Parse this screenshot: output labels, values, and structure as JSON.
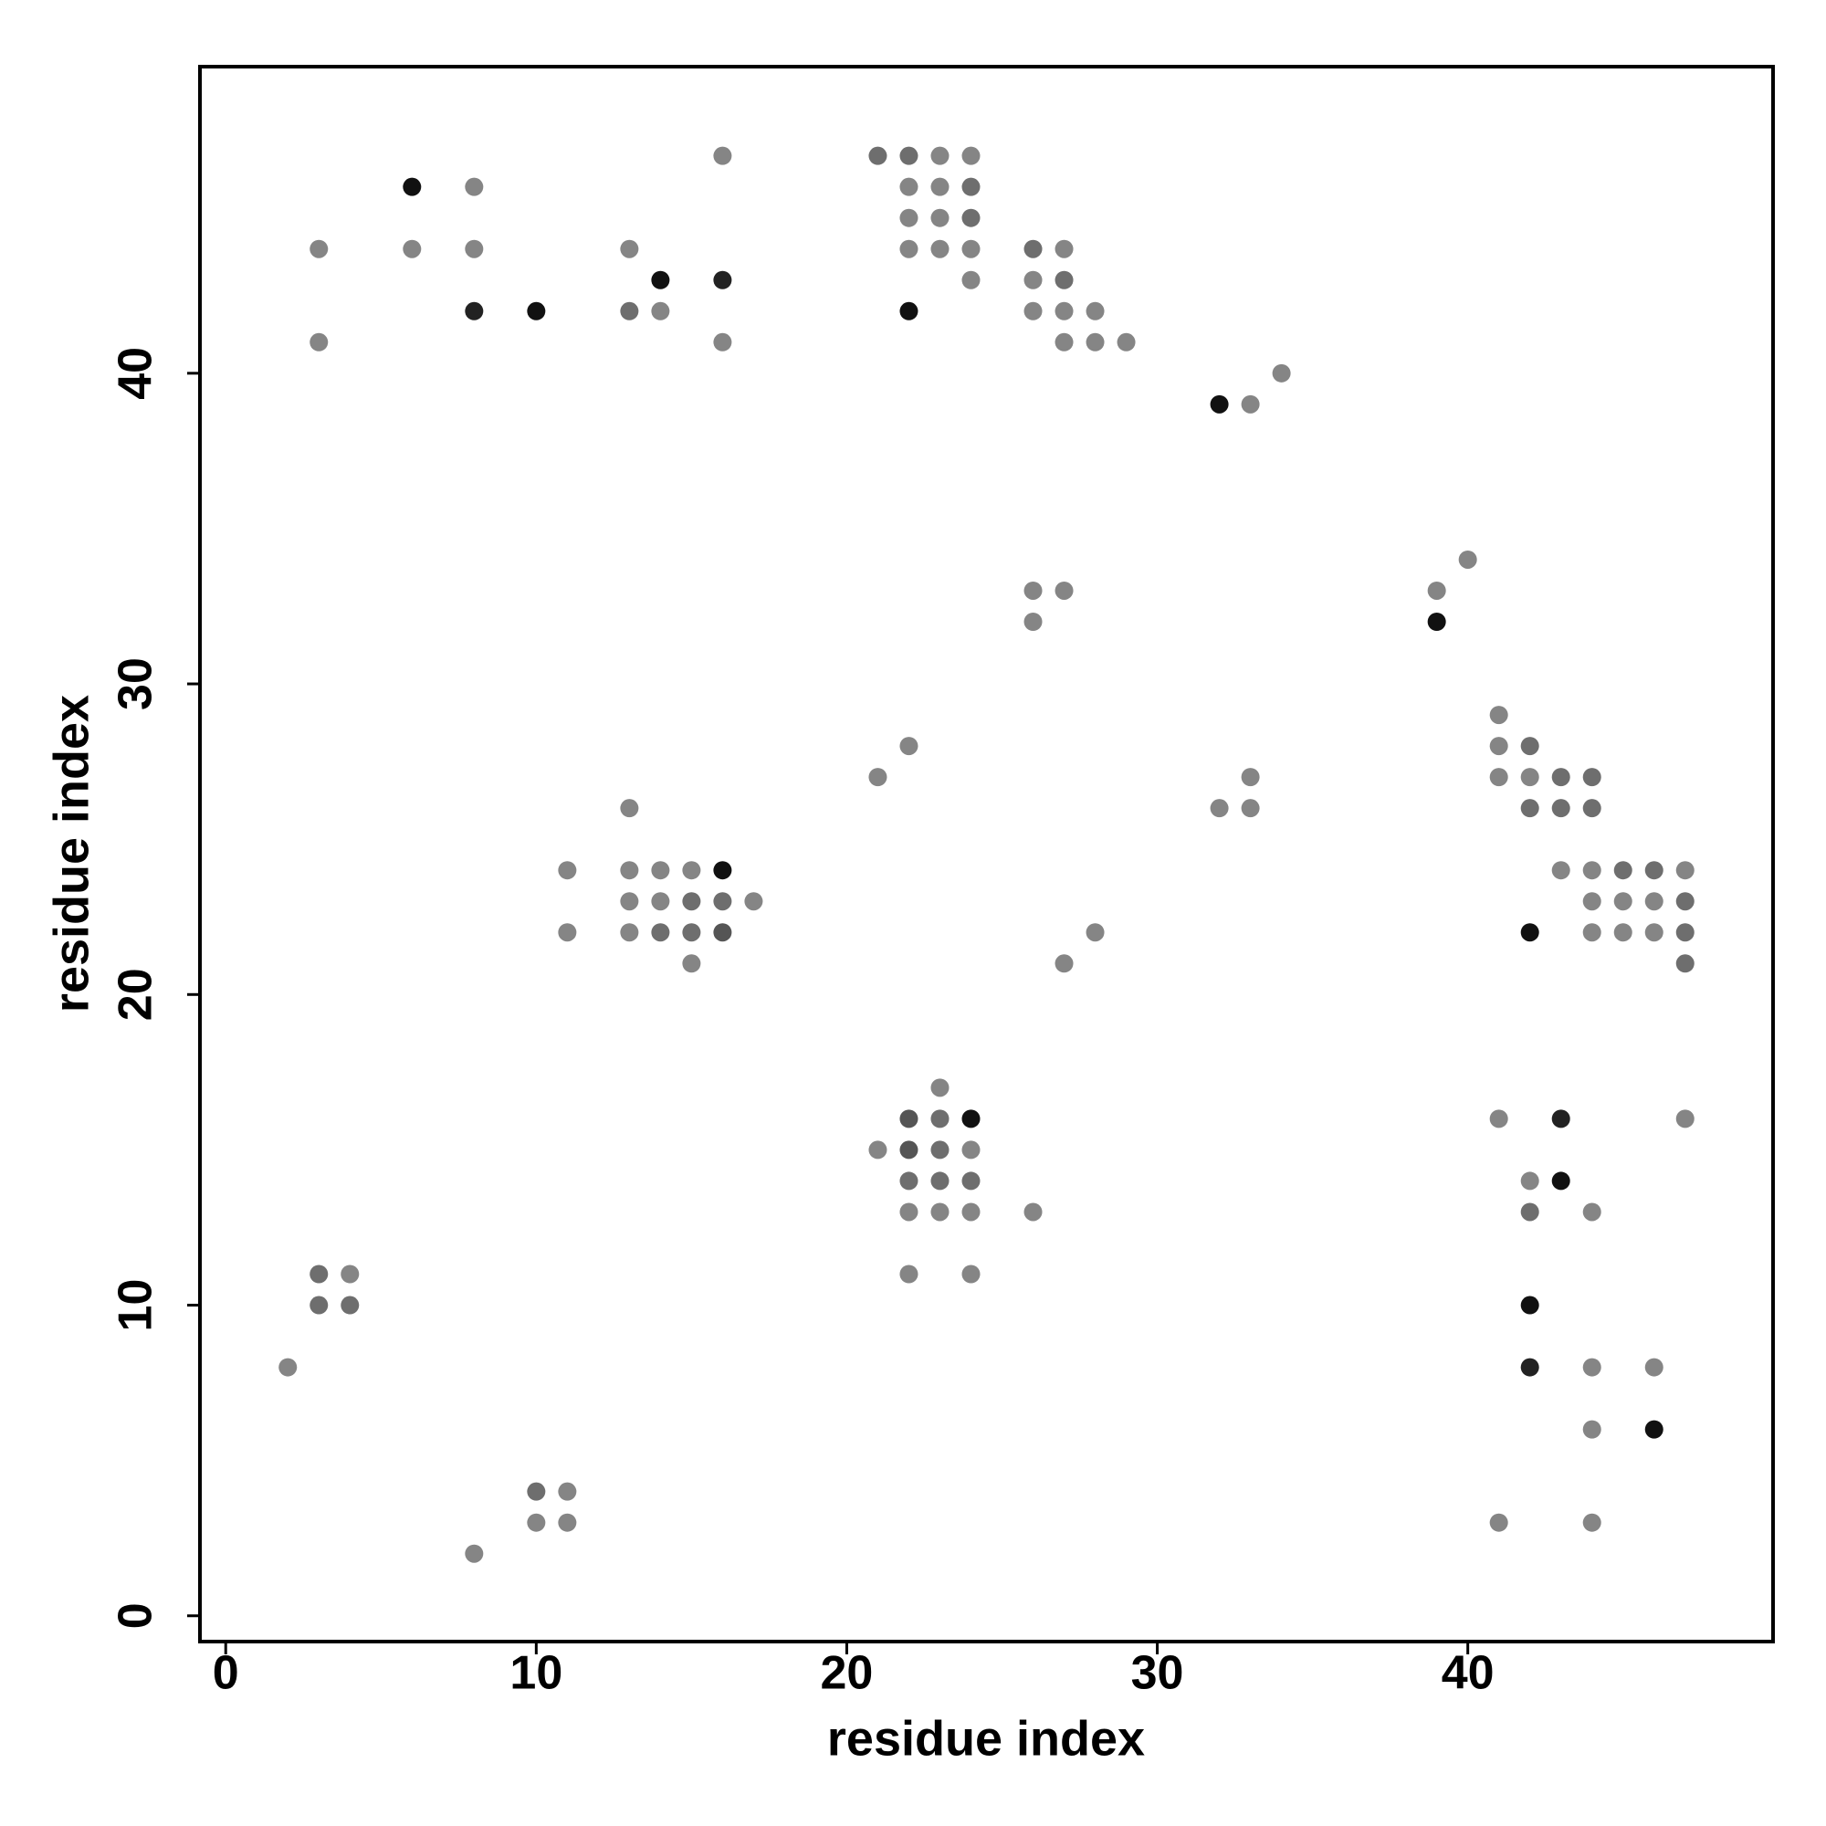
{
  "chart_data": {
    "type": "scatter",
    "xlabel": "residue index",
    "ylabel": "residue index",
    "xlim": [
      -0.83,
      49.83
    ],
    "ylim": [
      -0.83,
      49.87
    ],
    "xticks": [
      0,
      10,
      20,
      30,
      40
    ],
    "yticks": [
      0,
      10,
      20,
      30,
      40
    ],
    "x": [
      3,
      3,
      6,
      6,
      8,
      8,
      8,
      10,
      13,
      13,
      14,
      14,
      16,
      16,
      16,
      21,
      22,
      22,
      22,
      22,
      22,
      23,
      23,
      23,
      23,
      24,
      24,
      24,
      24,
      24,
      26,
      26,
      26,
      27,
      27,
      27,
      27,
      28,
      28,
      29,
      32,
      33,
      34,
      39,
      39,
      40,
      26,
      26,
      27,
      22,
      21,
      41,
      41,
      41,
      42,
      42,
      42,
      43,
      43,
      43,
      44,
      44,
      44,
      44,
      44,
      45,
      45,
      45,
      46,
      46,
      46,
      47,
      47,
      47,
      47,
      42,
      32,
      33,
      33,
      27,
      28,
      11,
      11,
      13,
      13,
      13,
      13,
      14,
      14,
      14,
      15,
      15,
      15,
      15,
      16,
      16,
      16,
      17,
      23,
      22,
      23,
      24,
      21,
      22,
      23,
      24,
      22,
      23,
      24,
      22,
      23,
      24,
      26,
      22,
      24,
      41,
      43,
      47,
      42,
      43,
      42,
      44,
      42,
      42,
      44,
      46,
      44,
      46,
      41,
      44,
      3,
      4,
      3,
      4,
      2,
      10,
      11,
      10,
      11,
      8
    ],
    "y": [
      44,
      41,
      46,
      44,
      46,
      44,
      42,
      42,
      44,
      42,
      43,
      42,
      47,
      43,
      41,
      47,
      47,
      46,
      45,
      44,
      42,
      47,
      46,
      45,
      44,
      47,
      46,
      45,
      44,
      43,
      44,
      43,
      42,
      44,
      43,
      42,
      41,
      42,
      41,
      41,
      39,
      39,
      40,
      33,
      32,
      34,
      33,
      32,
      33,
      28,
      27,
      29,
      28,
      27,
      28,
      27,
      26,
      27,
      26,
      24,
      27,
      26,
      24,
      23,
      22,
      24,
      23,
      22,
      24,
      23,
      22,
      24,
      23,
      22,
      21,
      22,
      26,
      27,
      26,
      21,
      22,
      24,
      22,
      26,
      24,
      23,
      22,
      24,
      23,
      22,
      24,
      23,
      22,
      21,
      24,
      23,
      22,
      23,
      17,
      16,
      16,
      16,
      15,
      15,
      15,
      15,
      14,
      14,
      14,
      13,
      13,
      13,
      13,
      11,
      11,
      16,
      16,
      16,
      14,
      14,
      13,
      13,
      10,
      8,
      8,
      8,
      6,
      6,
      3,
      3,
      11,
      11,
      10,
      10,
      8,
      4,
      4,
      3,
      3,
      2
    ],
    "colors": [
      "#858585",
      "#858585",
      "#111111",
      "#858585",
      "#858585",
      "#858585",
      "#222222",
      "#111111",
      "#858585",
      "#6e6e6e",
      "#111111",
      "#858585",
      "#858585",
      "#222222",
      "#858585",
      "#6e6e6e",
      "#6e6e6e",
      "#858585",
      "#858585",
      "#858585",
      "#111111",
      "#858585",
      "#858585",
      "#858585",
      "#858585",
      "#858585",
      "#6e6e6e",
      "#6e6e6e",
      "#858585",
      "#858585",
      "#6e6e6e",
      "#858585",
      "#858585",
      "#858585",
      "#6e6e6e",
      "#858585",
      "#858585",
      "#858585",
      "#858585",
      "#858585",
      "#111111",
      "#858585",
      "#858585",
      "#858585",
      "#111111",
      "#858585",
      "#858585",
      "#858585",
      "#858585",
      "#858585",
      "#858585",
      "#858585",
      "#858585",
      "#858585",
      "#6e6e6e",
      "#858585",
      "#6e6e6e",
      "#6e6e6e",
      "#6e6e6e",
      "#858585",
      "#6e6e6e",
      "#6e6e6e",
      "#858585",
      "#858585",
      "#858585",
      "#6e6e6e",
      "#858585",
      "#858585",
      "#6e6e6e",
      "#858585",
      "#858585",
      "#858585",
      "#6e6e6e",
      "#6e6e6e",
      "#6e6e6e",
      "#111111",
      "#858585",
      "#858585",
      "#858585",
      "#858585",
      "#858585",
      "#858585",
      "#858585",
      "#858585",
      "#858585",
      "#858585",
      "#858585",
      "#858585",
      "#858585",
      "#6e6e6e",
      "#858585",
      "#6e6e6e",
      "#6e6e6e",
      "#858585",
      "#111111",
      "#6e6e6e",
      "#555555",
      "#858585",
      "#858585",
      "#555555",
      "#6e6e6e",
      "#111111",
      "#858585",
      "#555555",
      "#6e6e6e",
      "#858585",
      "#6e6e6e",
      "#6e6e6e",
      "#6e6e6e",
      "#858585",
      "#858585",
      "#858585",
      "#858585",
      "#858585",
      "#858585",
      "#858585",
      "#222222",
      "#858585",
      "#858585",
      "#111111",
      "#6e6e6e",
      "#858585",
      "#111111",
      "#222222",
      "#858585",
      "#858585",
      "#858585",
      "#111111",
      "#858585",
      "#858585",
      "#6e6e6e",
      "#858585",
      "#6e6e6e",
      "#6e6e6e",
      "#858585",
      "#6e6e6e",
      "#858585",
      "#858585",
      "#858585",
      "#858585"
    ]
  }
}
